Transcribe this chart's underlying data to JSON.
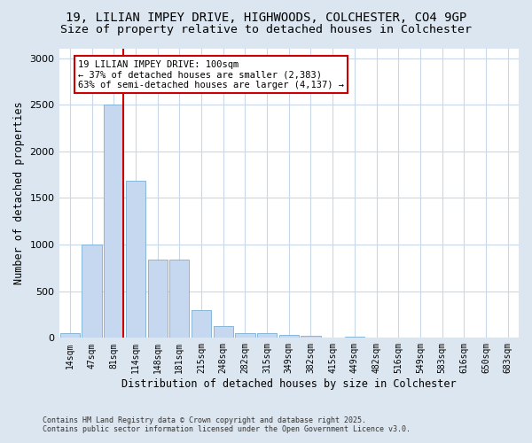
{
  "title_line1": "19, LILIAN IMPEY DRIVE, HIGHWOODS, COLCHESTER, CO4 9GP",
  "title_line2": "Size of property relative to detached houses in Colchester",
  "xlabel": "Distribution of detached houses by size in Colchester",
  "ylabel": "Number of detached properties",
  "categories": [
    "14sqm",
    "47sqm",
    "81sqm",
    "114sqm",
    "148sqm",
    "181sqm",
    "215sqm",
    "248sqm",
    "282sqm",
    "315sqm",
    "349sqm",
    "382sqm",
    "415sqm",
    "449sqm",
    "482sqm",
    "516sqm",
    "549sqm",
    "583sqm",
    "616sqm",
    "650sqm",
    "683sqm"
  ],
  "values": [
    50,
    1000,
    2500,
    1680,
    840,
    840,
    300,
    125,
    55,
    55,
    35,
    20,
    2,
    15,
    2,
    2,
    1,
    0,
    0,
    0,
    0
  ],
  "bar_color": "#c5d8ef",
  "bar_edgecolor": "#7aafd4",
  "vline_color": "#cc0000",
  "vline_xindex": 2,
  "annotation_box_text": "19 LILIAN IMPEY DRIVE: 100sqm\n← 37% of detached houses are smaller (2,383)\n63% of semi-detached houses are larger (4,137) →",
  "annotation_box_color": "#cc0000",
  "annotation_box_facecolor": "white",
  "ylim": [
    0,
    3100
  ],
  "background_color": "#dce6f0",
  "plot_background": "#ffffff",
  "grid_color": "#c8d8e8",
  "footer_line1": "Contains HM Land Registry data © Crown copyright and database right 2025.",
  "footer_line2": "Contains public sector information licensed under the Open Government Licence v3.0.",
  "title_fontsize": 10,
  "subtitle_fontsize": 9.5,
  "tick_fontsize": 7,
  "ylabel_fontsize": 8.5,
  "xlabel_fontsize": 8.5,
  "annotation_fontsize": 7.5,
  "footer_fontsize": 6.0
}
